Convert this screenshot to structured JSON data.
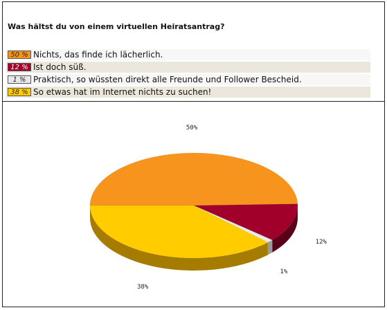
{
  "question": "Was hältst du von einem virtuellen Heiratsantrag?",
  "options": [
    {
      "percent": "50 %",
      "label": "Nichts, das finde ich lächerlich.",
      "color": "#f7941d"
    },
    {
      "percent": "12 %",
      "label": "Ist doch süß.",
      "color": "#a0002a"
    },
    {
      "percent": "1 %",
      "label": "Praktisch, so wüssten direkt alle Freunde und Follower Bescheid.",
      "color": "#e8e8e8"
    },
    {
      "percent": "38 %",
      "label": "So etwas hat im Internet nichts zu suchen!",
      "color": "#ffcc00"
    }
  ],
  "chart_data": {
    "type": "pie",
    "title": "",
    "slices": [
      {
        "label": "50%",
        "value": 50,
        "color": "#f7941d",
        "side_color": "#a85e0c"
      },
      {
        "label": "12%",
        "value": 12,
        "color": "#a0002a",
        "side_color": "#5a0018"
      },
      {
        "label": "1%",
        "value": 1,
        "color": "#e8e8e8",
        "side_color": "#9a9a9a"
      },
      {
        "label": "38%",
        "value": 38,
        "color": "#ffcc00",
        "side_color": "#a67c00"
      }
    ]
  }
}
